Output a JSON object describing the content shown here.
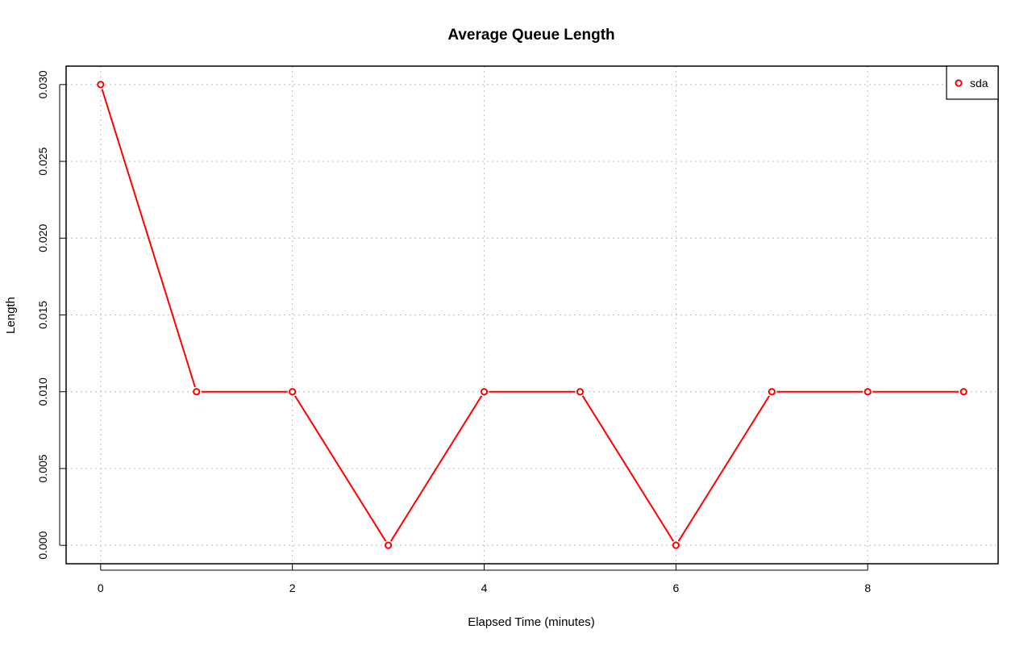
{
  "chart_data": {
    "type": "line",
    "title": "Average Queue Length",
    "xlabel": "Elapsed Time (minutes)",
    "ylabel": "Length",
    "xlim": [
      -0.36,
      9.36
    ],
    "ylim": [
      -0.0012,
      0.0312
    ],
    "x_ticks": [
      0,
      2,
      4,
      6,
      8
    ],
    "x_tick_labels": [
      "0",
      "2",
      "4",
      "6",
      "8"
    ],
    "y_ticks": [
      0.0,
      0.005,
      0.01,
      0.015,
      0.02,
      0.025,
      0.03
    ],
    "y_tick_labels": [
      "0.000",
      "0.005",
      "0.010",
      "0.015",
      "0.020",
      "0.025",
      "0.030"
    ],
    "grid": true,
    "legend_position": "top-right",
    "series": [
      {
        "name": "sda",
        "color": "#ff0000",
        "marker": "open-circle",
        "x": [
          0,
          1,
          2,
          3,
          4,
          5,
          6,
          7,
          8,
          9
        ],
        "y": [
          0.03,
          0.01,
          0.01,
          0.0,
          0.01,
          0.01,
          0.0,
          0.01,
          0.01,
          0.01
        ]
      }
    ]
  }
}
